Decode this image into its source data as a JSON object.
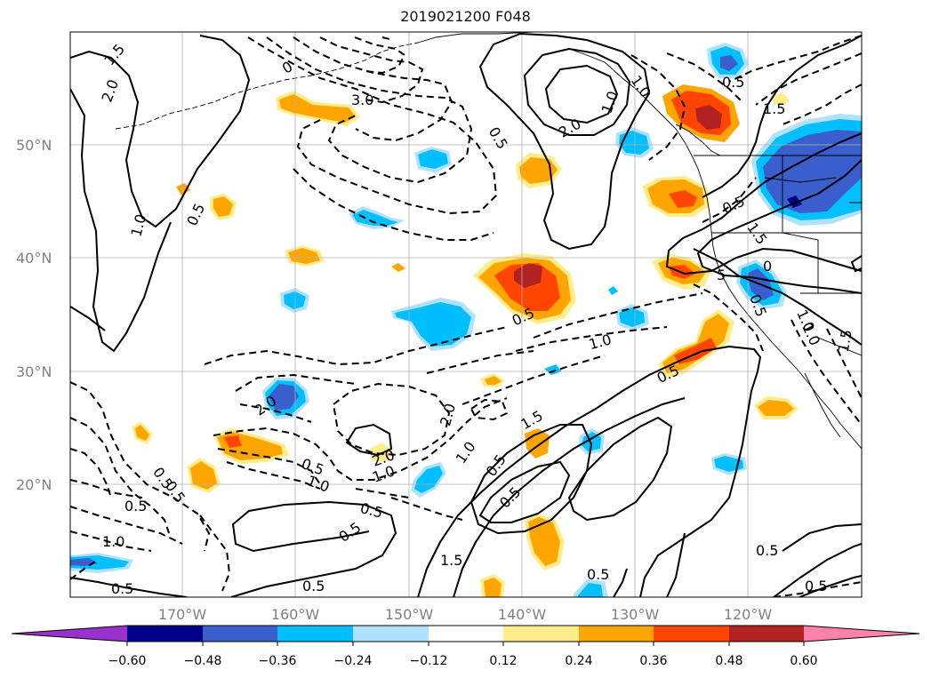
{
  "title": "2019021200 F048",
  "lat_labels": [
    "50°N",
    "40°N",
    "30°N",
    "20°N"
  ],
  "lon_labels": [
    "170°W",
    "160°W",
    "150°W",
    "140°W",
    "130°W",
    "120°W"
  ],
  "colorbar": {
    "ticks": [
      "−0.60",
      "−0.48",
      "−0.36",
      "−0.24",
      "−0.12",
      "0.12",
      "0.24",
      "0.36",
      "0.48",
      "0.60"
    ],
    "colors": [
      "#9932cc",
      "#00008b",
      "#3a5fcd",
      "#00bfff",
      "#b0e2ff",
      "#ffffff",
      "#ffec8b",
      "#ffa500",
      "#ff4500",
      "#b22222",
      "#ff82ab"
    ]
  },
  "contour_labels": [
    "1.5",
    "2.0",
    "0.5",
    "1.0",
    "0",
    "3.0",
    "0.5",
    "2.0",
    "1.0",
    "1.0",
    "1.5",
    "0.5",
    "0.5",
    "1.5",
    "5",
    "0",
    "0.5",
    "1.0",
    "1.0",
    "0.5",
    "1.0",
    "1.5",
    "0.5",
    "2.0",
    "1.5",
    "2.0",
    "1.0",
    "0.5",
    "0.5",
    "2.0",
    "1.0",
    "0.5",
    "1.0",
    "0.5",
    "0.5",
    "0.5",
    "1.0",
    "0.5",
    "0.5",
    "0.5",
    "1.5",
    "0.5"
  ]
}
